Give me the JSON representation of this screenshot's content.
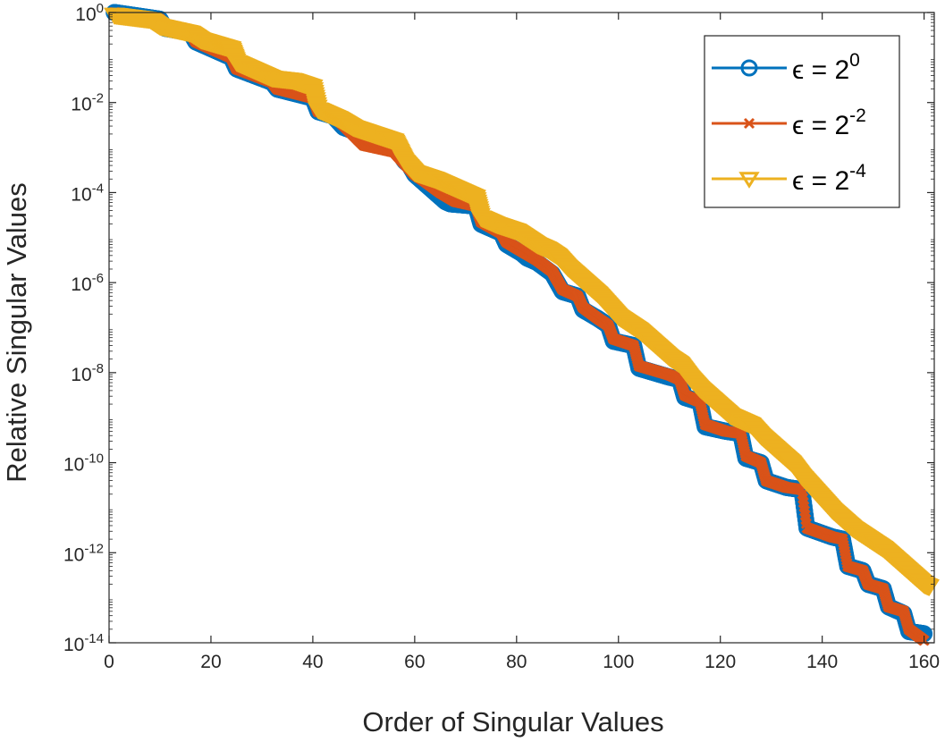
{
  "chart_data": {
    "type": "line",
    "xlabel": "Order of Singular Values",
    "ylabel": "Relative Singular Values",
    "xlim": [
      0,
      162
    ],
    "ylim_log10": [
      -14,
      0
    ],
    "yscale": "log",
    "x_ticks": [
      0,
      20,
      40,
      60,
      80,
      100,
      120,
      140,
      160
    ],
    "y_ticks": [
      {
        "base": "10",
        "exp": "0"
      },
      {
        "base": "10",
        "exp": "-2"
      },
      {
        "base": "10",
        "exp": "-4"
      },
      {
        "base": "10",
        "exp": "-6"
      },
      {
        "base": "10",
        "exp": "-8"
      },
      {
        "base": "10",
        "exp": "-10"
      },
      {
        "base": "10",
        "exp": "-12"
      },
      {
        "base": "10",
        "exp": "-14"
      }
    ],
    "legend_position": "top-right",
    "series": [
      {
        "name": "ε = 2^0",
        "label_base": "ϵ = 2",
        "label_exp": "0",
        "color": "#0072BD",
        "marker": "circle",
        "points_log10": [
          [
            1,
            0
          ],
          [
            10,
            -0.15
          ],
          [
            11,
            -0.35
          ],
          [
            16,
            -0.45
          ],
          [
            17,
            -0.65
          ],
          [
            24,
            -1.0
          ],
          [
            25,
            -1.25
          ],
          [
            32,
            -1.55
          ],
          [
            33,
            -1.7
          ],
          [
            40,
            -1.9
          ],
          [
            41,
            -2.2
          ],
          [
            44,
            -2.3
          ],
          [
            46,
            -2.55
          ],
          [
            56,
            -2.95
          ],
          [
            58,
            -3.3
          ],
          [
            59,
            -3.4
          ],
          [
            60,
            -3.6
          ],
          [
            62,
            -3.8
          ],
          [
            65,
            -4.1
          ],
          [
            66,
            -4.2
          ],
          [
            67,
            -4.25
          ],
          [
            72,
            -4.3
          ],
          [
            73,
            -4.7
          ],
          [
            77,
            -4.9
          ],
          [
            78,
            -5.15
          ],
          [
            81,
            -5.35
          ],
          [
            82,
            -5.45
          ],
          [
            84,
            -5.55
          ],
          [
            87,
            -5.8
          ],
          [
            88,
            -6.0
          ],
          [
            89,
            -6.2
          ],
          [
            92,
            -6.3
          ],
          [
            93,
            -6.6
          ],
          [
            96,
            -6.8
          ],
          [
            98,
            -6.95
          ],
          [
            99,
            -7.3
          ],
          [
            103,
            -7.4
          ],
          [
            104,
            -7.9
          ],
          [
            110,
            -8.1
          ],
          [
            112,
            -8.15
          ],
          [
            113,
            -8.55
          ],
          [
            116,
            -8.65
          ],
          [
            117,
            -9.2
          ],
          [
            121,
            -9.3
          ],
          [
            124,
            -9.35
          ],
          [
            125,
            -9.9
          ],
          [
            128,
            -10.0
          ],
          [
            129,
            -10.4
          ],
          [
            133,
            -10.55
          ],
          [
            136,
            -10.6
          ],
          [
            137,
            -11.45
          ],
          [
            142,
            -11.65
          ],
          [
            144,
            -11.7
          ],
          [
            145,
            -12.3
          ],
          [
            148,
            -12.4
          ],
          [
            149,
            -12.7
          ],
          [
            152,
            -12.8
          ],
          [
            153,
            -13.2
          ],
          [
            156,
            -13.35
          ],
          [
            157,
            -13.75
          ],
          [
            160,
            -13.8
          ]
        ]
      },
      {
        "name": "ε = 2^-2",
        "label_base": "ϵ = 2",
        "label_exp": "-2",
        "color": "#D95319",
        "marker": "cross",
        "points_log10": [
          [
            1,
            0
          ],
          [
            10,
            -0.15
          ],
          [
            11,
            -0.35
          ],
          [
            16,
            -0.45
          ],
          [
            17,
            -0.65
          ],
          [
            24,
            -1.0
          ],
          [
            25,
            -1.25
          ],
          [
            32,
            -1.55
          ],
          [
            33,
            -1.7
          ],
          [
            40,
            -1.9
          ],
          [
            41,
            -2.2
          ],
          [
            44,
            -2.3
          ],
          [
            46,
            -2.5
          ],
          [
            50,
            -2.95
          ],
          [
            54,
            -3.05
          ],
          [
            56,
            -3.1
          ],
          [
            58,
            -3.35
          ],
          [
            60,
            -3.6
          ],
          [
            62,
            -3.75
          ],
          [
            65,
            -4.0
          ],
          [
            68,
            -4.2
          ],
          [
            72,
            -4.3
          ],
          [
            73,
            -4.65
          ],
          [
            77,
            -4.9
          ],
          [
            78,
            -5.1
          ],
          [
            81,
            -5.3
          ],
          [
            84,
            -5.5
          ],
          [
            87,
            -5.75
          ],
          [
            88,
            -5.95
          ],
          [
            89,
            -6.15
          ],
          [
            92,
            -6.3
          ],
          [
            93,
            -6.55
          ],
          [
            96,
            -6.8
          ],
          [
            98,
            -6.95
          ],
          [
            99,
            -7.25
          ],
          [
            103,
            -7.4
          ],
          [
            104,
            -7.85
          ],
          [
            110,
            -8.05
          ],
          [
            112,
            -8.15
          ],
          [
            113,
            -8.5
          ],
          [
            116,
            -8.65
          ],
          [
            117,
            -9.15
          ],
          [
            121,
            -9.3
          ],
          [
            124,
            -9.35
          ],
          [
            125,
            -9.85
          ],
          [
            128,
            -10.0
          ],
          [
            129,
            -10.4
          ],
          [
            133,
            -10.55
          ],
          [
            136,
            -10.6
          ],
          [
            137,
            -11.45
          ],
          [
            142,
            -11.65
          ],
          [
            144,
            -11.7
          ],
          [
            145,
            -12.3
          ],
          [
            148,
            -12.4
          ],
          [
            149,
            -12.7
          ],
          [
            152,
            -12.8
          ],
          [
            153,
            -13.2
          ],
          [
            156,
            -13.3
          ],
          [
            157,
            -13.7
          ],
          [
            160,
            -13.95
          ]
        ]
      },
      {
        "name": "ε = 2^-4",
        "label_base": "ϵ = 2",
        "label_exp": "-4",
        "color": "#EDB120",
        "marker": "triangle-down",
        "points_log10": [
          [
            1,
            -0.05
          ],
          [
            8,
            -0.15
          ],
          [
            10,
            -0.3
          ],
          [
            16,
            -0.45
          ],
          [
            18,
            -0.6
          ],
          [
            24,
            -0.8
          ],
          [
            25,
            -1.1
          ],
          [
            28,
            -1.25
          ],
          [
            32,
            -1.45
          ],
          [
            36,
            -1.5
          ],
          [
            40,
            -1.65
          ],
          [
            41,
            -2.15
          ],
          [
            45,
            -2.35
          ],
          [
            48,
            -2.55
          ],
          [
            52,
            -2.7
          ],
          [
            56,
            -2.85
          ],
          [
            58,
            -3.3
          ],
          [
            60,
            -3.55
          ],
          [
            64,
            -3.7
          ],
          [
            68,
            -3.9
          ],
          [
            72,
            -4.1
          ],
          [
            73,
            -4.55
          ],
          [
            76,
            -4.7
          ],
          [
            80,
            -4.85
          ],
          [
            82,
            -5.0
          ],
          [
            84,
            -5.15
          ],
          [
            86,
            -5.25
          ],
          [
            88,
            -5.4
          ],
          [
            90,
            -5.65
          ],
          [
            92,
            -5.85
          ],
          [
            94,
            -6.05
          ],
          [
            96,
            -6.25
          ],
          [
            98,
            -6.5
          ],
          [
            100,
            -6.75
          ],
          [
            102,
            -6.9
          ],
          [
            104,
            -7.05
          ],
          [
            106,
            -7.25
          ],
          [
            108,
            -7.45
          ],
          [
            110,
            -7.65
          ],
          [
            112,
            -7.8
          ],
          [
            114,
            -8.1
          ],
          [
            116,
            -8.35
          ],
          [
            118,
            -8.55
          ],
          [
            120,
            -8.75
          ],
          [
            122,
            -8.95
          ],
          [
            124,
            -9.05
          ],
          [
            126,
            -9.15
          ],
          [
            128,
            -9.4
          ],
          [
            130,
            -9.6
          ],
          [
            132,
            -9.8
          ],
          [
            134,
            -10.0
          ],
          [
            136,
            -10.3
          ],
          [
            138,
            -10.55
          ],
          [
            140,
            -10.8
          ],
          [
            142,
            -11.05
          ],
          [
            144,
            -11.25
          ],
          [
            146,
            -11.45
          ],
          [
            148,
            -11.6
          ],
          [
            150,
            -11.75
          ],
          [
            152,
            -11.9
          ],
          [
            154,
            -12.1
          ],
          [
            156,
            -12.3
          ],
          [
            158,
            -12.5
          ],
          [
            160,
            -12.7
          ],
          [
            161,
            -12.75
          ]
        ]
      }
    ]
  }
}
